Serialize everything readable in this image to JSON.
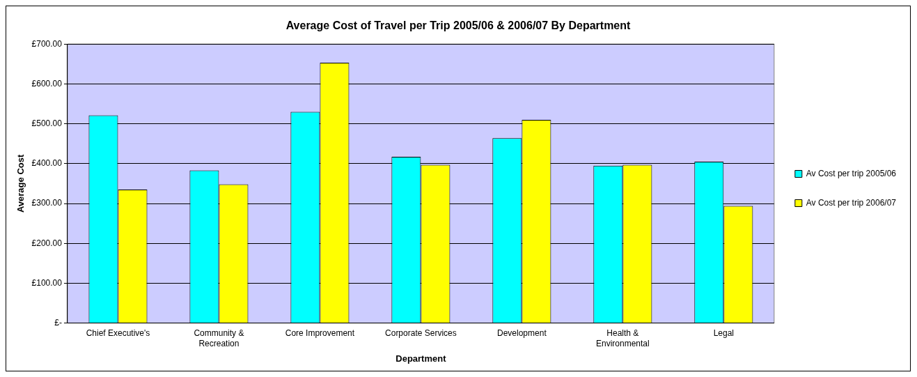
{
  "chart_data": {
    "type": "bar",
    "title": "Average Cost of Travel per Trip 2005/06 & 2006/07 By Department",
    "xlabel": "Department",
    "ylabel": "Average Cost",
    "categories": [
      "Chief Executive's",
      "Community & Recreation",
      "Core Improvement",
      "Corporate Services",
      "Development",
      "Health & Environmental",
      "Legal"
    ],
    "series": [
      {
        "name": "Av Cost per trip 2005/06",
        "color": "#00ffff",
        "values": [
          521,
          383,
          530,
          417,
          464,
          395,
          405
        ]
      },
      {
        "name": "Av Cost per trip 2006/07",
        "color": "#ffff00",
        "values": [
          335,
          348,
          653,
          397,
          510,
          397,
          294
        ]
      }
    ],
    "ylim": [
      0,
      700
    ],
    "yticks": [
      {
        "value": 0,
        "label": "£-"
      },
      {
        "value": 100,
        "label": "£100.00"
      },
      {
        "value": 200,
        "label": "£200.00"
      },
      {
        "value": 300,
        "label": "£300.00"
      },
      {
        "value": 400,
        "label": "£400.00"
      },
      {
        "value": 500,
        "label": "£500.00"
      },
      {
        "value": 600,
        "label": "£600.00"
      },
      {
        "value": 700,
        "label": "£700.00"
      }
    ],
    "grid": "y",
    "legend": "right"
  }
}
